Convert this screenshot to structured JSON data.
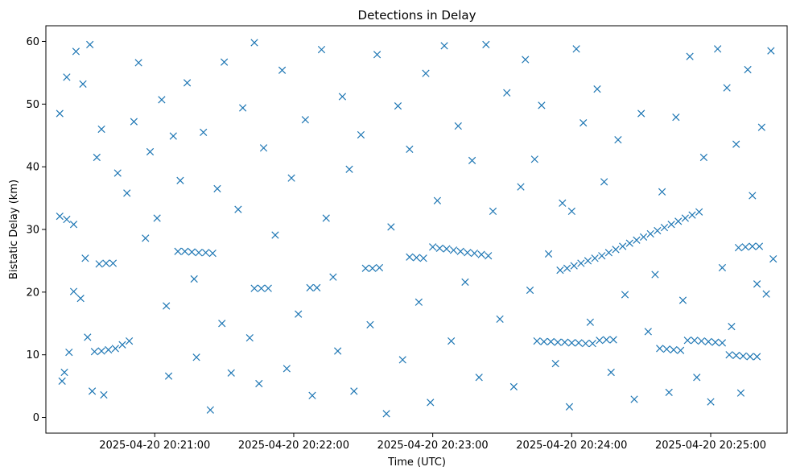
{
  "chart_data": {
    "type": "scatter",
    "title": "Detections in Delay",
    "xlabel": "Time (UTC)",
    "ylabel": "Bistatic Delay (km)",
    "marker": "x",
    "color": "#1f77b4",
    "grid": false,
    "legend": "none",
    "xlim": [
      "2025-04-20 20:20:13",
      "2025-04-20 20:25:33"
    ],
    "ylim": [
      -2.5,
      62.5
    ],
    "x_ticks": [
      "2025-04-20 20:21:00",
      "2025-04-20 20:22:00",
      "2025-04-20 20:23:00",
      "2025-04-20 20:24:00",
      "2025-04-20 20:25:00"
    ],
    "y_ticks": [
      "0",
      "10",
      "20",
      "30",
      "40",
      "50",
      "60"
    ],
    "series": [
      {
        "points": [
          [
            "2025-04-20 20:23:45",
            12.2
          ],
          [
            "2025-04-20 20:23:48",
            12.1
          ],
          [
            "2025-04-20 20:23:51",
            12.1
          ],
          [
            "2025-04-20 20:23:54",
            12.0
          ],
          [
            "2025-04-20 20:23:57",
            12.0
          ],
          [
            "2025-04-20 20:24:00",
            11.9
          ],
          [
            "2025-04-20 20:24:03",
            11.9
          ],
          [
            "2025-04-20 20:24:06",
            11.8
          ],
          [
            "2025-04-20 20:24:09",
            11.8
          ],
          [
            "2025-04-20 20:24:12",
            12.3
          ],
          [
            "2025-04-20 20:24:15",
            12.4
          ],
          [
            "2025-04-20 20:24:18",
            12.4
          ],
          [
            "2025-04-20 20:24:38",
            11.0
          ],
          [
            "2025-04-20 20:24:41",
            10.9
          ],
          [
            "2025-04-20 20:24:44",
            10.8
          ],
          [
            "2025-04-20 20:24:47",
            10.7
          ],
          [
            "2025-04-20 20:24:50",
            12.3
          ],
          [
            "2025-04-20 20:24:53",
            12.3
          ],
          [
            "2025-04-20 20:24:56",
            12.2
          ],
          [
            "2025-04-20 20:24:59",
            12.1
          ],
          [
            "2025-04-20 20:25:02",
            12.0
          ],
          [
            "2025-04-20 20:25:05",
            11.9
          ],
          [
            "2025-04-20 20:25:08",
            10.0
          ],
          [
            "2025-04-20 20:25:11",
            9.9
          ],
          [
            "2025-04-20 20:25:14",
            9.8
          ],
          [
            "2025-04-20 20:25:17",
            9.7
          ],
          [
            "2025-04-20 20:25:20",
            9.7
          ],
          [
            "2025-04-20 20:23:55",
            23.5
          ],
          [
            "2025-04-20 20:23:58",
            23.8
          ],
          [
            "2025-04-20 20:24:01",
            24.2
          ],
          [
            "2025-04-20 20:24:04",
            24.6
          ],
          [
            "2025-04-20 20:24:07",
            25.0
          ],
          [
            "2025-04-20 20:24:10",
            25.4
          ],
          [
            "2025-04-20 20:24:13",
            25.8
          ],
          [
            "2025-04-20 20:24:16",
            26.3
          ],
          [
            "2025-04-20 20:24:19",
            26.8
          ],
          [
            "2025-04-20 20:24:22",
            27.3
          ],
          [
            "2025-04-20 20:24:25",
            27.8
          ],
          [
            "2025-04-20 20:24:28",
            28.3
          ],
          [
            "2025-04-20 20:24:31",
            28.8
          ],
          [
            "2025-04-20 20:24:34",
            29.3
          ],
          [
            "2025-04-20 20:24:37",
            29.8
          ],
          [
            "2025-04-20 20:24:40",
            30.3
          ],
          [
            "2025-04-20 20:24:43",
            30.8
          ],
          [
            "2025-04-20 20:24:46",
            31.3
          ],
          [
            "2025-04-20 20:24:49",
            31.8
          ],
          [
            "2025-04-20 20:24:52",
            32.3
          ],
          [
            "2025-04-20 20:24:55",
            32.8
          ],
          [
            "2025-04-20 20:25:12",
            27.1
          ],
          [
            "2025-04-20 20:25:15",
            27.2
          ],
          [
            "2025-04-20 20:25:18",
            27.3
          ],
          [
            "2025-04-20 20:25:21",
            27.3
          ],
          [
            "2025-04-20 20:23:00",
            27.2
          ],
          [
            "2025-04-20 20:23:03",
            27.0
          ],
          [
            "2025-04-20 20:23:06",
            26.9
          ],
          [
            "2025-04-20 20:23:09",
            26.7
          ],
          [
            "2025-04-20 20:23:12",
            26.5
          ],
          [
            "2025-04-20 20:23:15",
            26.3
          ],
          [
            "2025-04-20 20:23:18",
            26.2
          ],
          [
            "2025-04-20 20:23:21",
            26.0
          ],
          [
            "2025-04-20 20:23:24",
            25.8
          ],
          [
            "2025-04-20 20:22:50",
            25.6
          ],
          [
            "2025-04-20 20:22:53",
            25.5
          ],
          [
            "2025-04-20 20:22:56",
            25.4
          ],
          [
            "2025-04-20 20:22:31",
            23.8
          ],
          [
            "2025-04-20 20:22:34",
            23.8
          ],
          [
            "2025-04-20 20:22:37",
            23.9
          ],
          [
            "2025-04-20 20:21:43",
            20.6
          ],
          [
            "2025-04-20 20:21:46",
            20.6
          ],
          [
            "2025-04-20 20:21:49",
            20.6
          ],
          [
            "2025-04-20 20:22:07",
            20.7
          ],
          [
            "2025-04-20 20:22:10",
            20.7
          ],
          [
            "2025-04-20 20:21:10",
            26.5
          ],
          [
            "2025-04-20 20:21:13",
            26.5
          ],
          [
            "2025-04-20 20:21:16",
            26.4
          ],
          [
            "2025-04-20 20:21:19",
            26.3
          ],
          [
            "2025-04-20 20:21:22",
            26.3
          ],
          [
            "2025-04-20 20:21:25",
            26.2
          ],
          [
            "2025-04-20 20:20:36",
            24.5
          ],
          [
            "2025-04-20 20:20:39",
            24.6
          ],
          [
            "2025-04-20 20:20:42",
            24.6
          ],
          [
            "2025-04-20 20:20:34",
            10.5
          ],
          [
            "2025-04-20 20:20:37",
            10.6
          ],
          [
            "2025-04-20 20:20:40",
            10.8
          ],
          [
            "2025-04-20 20:20:43",
            11.0
          ],
          [
            "2025-04-20 20:20:46",
            11.6
          ],
          [
            "2025-04-20 20:20:49",
            12.2
          ],
          [
            "2025-04-20 20:20:19",
            32.1
          ],
          [
            "2025-04-20 20:20:22",
            31.6
          ],
          [
            "2025-04-20 20:20:25",
            30.8
          ],
          [
            "2025-04-20 20:20:22",
            54.3
          ],
          [
            "2025-04-20 20:20:19",
            48.5
          ],
          [
            "2025-04-20 20:20:20",
            5.8
          ],
          [
            "2025-04-20 20:20:21",
            7.2
          ],
          [
            "2025-04-20 20:20:23",
            10.4
          ],
          [
            "2025-04-20 20:20:25",
            20.1
          ],
          [
            "2025-04-20 20:20:28",
            19.0
          ],
          [
            "2025-04-20 20:20:30",
            25.4
          ],
          [
            "2025-04-20 20:20:31",
            12.8
          ],
          [
            "2025-04-20 20:20:33",
            4.2
          ],
          [
            "2025-04-20 20:20:35",
            41.5
          ],
          [
            "2025-04-20 20:20:38",
            3.6
          ],
          [
            "2025-04-20 20:20:26",
            58.4
          ],
          [
            "2025-04-20 20:20:32",
            59.5
          ],
          [
            "2025-04-20 20:20:29",
            53.2
          ],
          [
            "2025-04-20 20:20:37",
            46.0
          ],
          [
            "2025-04-20 20:20:44",
            39.0
          ],
          [
            "2025-04-20 20:20:48",
            35.8
          ],
          [
            "2025-04-20 20:20:51",
            47.2
          ],
          [
            "2025-04-20 20:20:53",
            56.6
          ],
          [
            "2025-04-20 20:20:56",
            28.6
          ],
          [
            "2025-04-20 20:20:58",
            42.4
          ],
          [
            "2025-04-20 20:21:01",
            31.8
          ],
          [
            "2025-04-20 20:21:03",
            50.7
          ],
          [
            "2025-04-20 20:21:05",
            17.8
          ],
          [
            "2025-04-20 20:21:06",
            6.6
          ],
          [
            "2025-04-20 20:21:08",
            44.9
          ],
          [
            "2025-04-20 20:21:11",
            37.8
          ],
          [
            "2025-04-20 20:21:14",
            53.4
          ],
          [
            "2025-04-20 20:21:17",
            22.1
          ],
          [
            "2025-04-20 20:21:18",
            9.6
          ],
          [
            "2025-04-20 20:21:21",
            45.5
          ],
          [
            "2025-04-20 20:21:24",
            1.2
          ],
          [
            "2025-04-20 20:21:27",
            36.5
          ],
          [
            "2025-04-20 20:21:29",
            15.0
          ],
          [
            "2025-04-20 20:21:30",
            56.7
          ],
          [
            "2025-04-20 20:21:33",
            7.1
          ],
          [
            "2025-04-20 20:21:36",
            33.2
          ],
          [
            "2025-04-20 20:21:38",
            49.4
          ],
          [
            "2025-04-20 20:21:41",
            12.7
          ],
          [
            "2025-04-20 20:21:43",
            59.8
          ],
          [
            "2025-04-20 20:21:45",
            5.4
          ],
          [
            "2025-04-20 20:21:47",
            43.0
          ],
          [
            "2025-04-20 20:21:52",
            29.1
          ],
          [
            "2025-04-20 20:21:55",
            55.4
          ],
          [
            "2025-04-20 20:21:57",
            7.8
          ],
          [
            "2025-04-20 20:21:59",
            38.2
          ],
          [
            "2025-04-20 20:22:02",
            16.5
          ],
          [
            "2025-04-20 20:22:05",
            47.5
          ],
          [
            "2025-04-20 20:22:08",
            3.5
          ],
          [
            "2025-04-20 20:22:12",
            58.7
          ],
          [
            "2025-04-20 20:22:14",
            31.8
          ],
          [
            "2025-04-20 20:22:17",
            22.4
          ],
          [
            "2025-04-20 20:22:19",
            10.6
          ],
          [
            "2025-04-20 20:22:21",
            51.2
          ],
          [
            "2025-04-20 20:22:24",
            39.6
          ],
          [
            "2025-04-20 20:22:26",
            4.2
          ],
          [
            "2025-04-20 20:22:29",
            45.1
          ],
          [
            "2025-04-20 20:22:33",
            14.8
          ],
          [
            "2025-04-20 20:22:36",
            57.9
          ],
          [
            "2025-04-20 20:22:40",
            0.6
          ],
          [
            "2025-04-20 20:22:42",
            30.4
          ],
          [
            "2025-04-20 20:22:45",
            49.7
          ],
          [
            "2025-04-20 20:22:47",
            9.2
          ],
          [
            "2025-04-20 20:22:50",
            42.8
          ],
          [
            "2025-04-20 20:22:54",
            18.4
          ],
          [
            "2025-04-20 20:22:57",
            54.9
          ],
          [
            "2025-04-20 20:22:59",
            2.4
          ],
          [
            "2025-04-20 20:23:02",
            34.6
          ],
          [
            "2025-04-20 20:23:05",
            59.3
          ],
          [
            "2025-04-20 20:23:08",
            12.2
          ],
          [
            "2025-04-20 20:23:11",
            46.5
          ],
          [
            "2025-04-20 20:23:14",
            21.6
          ],
          [
            "2025-04-20 20:23:17",
            41.0
          ],
          [
            "2025-04-20 20:23:20",
            6.4
          ],
          [
            "2025-04-20 20:23:23",
            59.5
          ],
          [
            "2025-04-20 20:23:26",
            32.9
          ],
          [
            "2025-04-20 20:23:29",
            15.7
          ],
          [
            "2025-04-20 20:23:32",
            51.8
          ],
          [
            "2025-04-20 20:23:35",
            4.9
          ],
          [
            "2025-04-20 20:23:38",
            36.8
          ],
          [
            "2025-04-20 20:23:40",
            57.1
          ],
          [
            "2025-04-20 20:23:42",
            20.3
          ],
          [
            "2025-04-20 20:23:44",
            41.2
          ],
          [
            "2025-04-20 20:23:47",
            49.8
          ],
          [
            "2025-04-20 20:23:50",
            26.1
          ],
          [
            "2025-04-20 20:23:53",
            8.6
          ],
          [
            "2025-04-20 20:23:56",
            34.2
          ],
          [
            "2025-04-20 20:23:59",
            1.7
          ],
          [
            "2025-04-20 20:24:00",
            32.9
          ],
          [
            "2025-04-20 20:24:02",
            58.8
          ],
          [
            "2025-04-20 20:24:05",
            47.0
          ],
          [
            "2025-04-20 20:24:08",
            15.2
          ],
          [
            "2025-04-20 20:24:11",
            52.4
          ],
          [
            "2025-04-20 20:24:14",
            37.6
          ],
          [
            "2025-04-20 20:24:17",
            7.2
          ],
          [
            "2025-04-20 20:24:20",
            44.3
          ],
          [
            "2025-04-20 20:24:23",
            19.6
          ],
          [
            "2025-04-20 20:24:27",
            2.9
          ],
          [
            "2025-04-20 20:24:30",
            48.5
          ],
          [
            "2025-04-20 20:24:33",
            13.7
          ],
          [
            "2025-04-20 20:24:36",
            22.8
          ],
          [
            "2025-04-20 20:24:39",
            36.0
          ],
          [
            "2025-04-20 20:24:42",
            4.0
          ],
          [
            "2025-04-20 20:24:45",
            47.9
          ],
          [
            "2025-04-20 20:24:48",
            18.7
          ],
          [
            "2025-04-20 20:24:51",
            57.6
          ],
          [
            "2025-04-20 20:24:54",
            6.4
          ],
          [
            "2025-04-20 20:24:57",
            41.5
          ],
          [
            "2025-04-20 20:25:00",
            2.5
          ],
          [
            "2025-04-20 20:25:03",
            58.8
          ],
          [
            "2025-04-20 20:25:05",
            23.9
          ],
          [
            "2025-04-20 20:25:07",
            52.6
          ],
          [
            "2025-04-20 20:25:09",
            14.5
          ],
          [
            "2025-04-20 20:25:11",
            43.6
          ],
          [
            "2025-04-20 20:25:13",
            3.9
          ],
          [
            "2025-04-20 20:25:16",
            55.5
          ],
          [
            "2025-04-20 20:25:18",
            35.4
          ],
          [
            "2025-04-20 20:25:20",
            21.3
          ],
          [
            "2025-04-20 20:25:22",
            46.3
          ],
          [
            "2025-04-20 20:25:24",
            19.7
          ],
          [
            "2025-04-20 20:25:26",
            58.5
          ],
          [
            "2025-04-20 20:25:27",
            25.3
          ]
        ]
      }
    ]
  }
}
